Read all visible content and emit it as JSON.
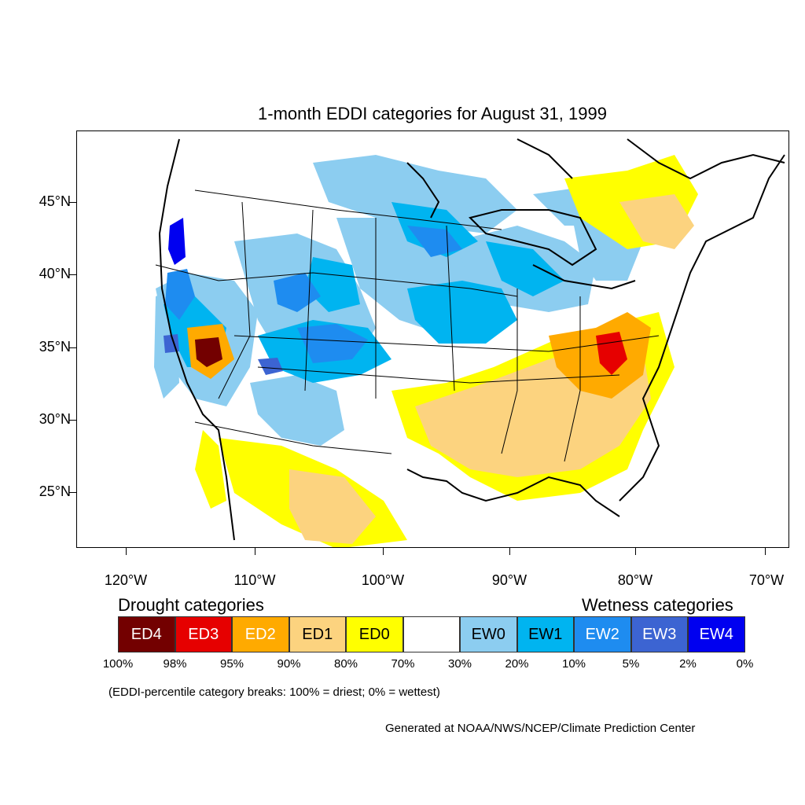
{
  "map": {
    "title": "1-month EDDI categories for August 31, 1999",
    "lat_labels": [
      "45°N",
      "40°N",
      "35°N",
      "30°N",
      "25°N"
    ],
    "lon_labels": [
      "120°W",
      "110°W",
      "100°W",
      "90°W",
      "80°W",
      "70°W"
    ]
  },
  "legend": {
    "drought_heading": "Drought categories",
    "wetness_heading": "Wetness categories",
    "categories": [
      {
        "label": "ED4",
        "color": "#730000",
        "text_color": "#ffffff"
      },
      {
        "label": "ED3",
        "color": "#e60000",
        "text_color": "#ffffff"
      },
      {
        "label": "ED2",
        "color": "#ffaa00",
        "text_color": "#ffffff"
      },
      {
        "label": "ED1",
        "color": "#fcd37f",
        "text_color": "#000000"
      },
      {
        "label": "ED0",
        "color": "#ffff00",
        "text_color": "#000000"
      },
      {
        "label": "",
        "color": "#ffffff",
        "text_color": "#000000"
      },
      {
        "label": "EW0",
        "color": "#8ccdf0",
        "text_color": "#000000"
      },
      {
        "label": "EW1",
        "color": "#00b4f0",
        "text_color": "#000000"
      },
      {
        "label": "EW2",
        "color": "#1e8cf0",
        "text_color": "#ffffff"
      },
      {
        "label": "EW3",
        "color": "#3c64d2",
        "text_color": "#ffffff"
      },
      {
        "label": "EW4",
        "color": "#0000f0",
        "text_color": "#ffffff"
      }
    ],
    "breaks": [
      "100%",
      "98%",
      "95%",
      "90%",
      "80%",
      "70%",
      "30%",
      "20%",
      "10%",
      "5%",
      "2%",
      "0%"
    ]
  },
  "footnote": "(EDDI-percentile category breaks: 100% = driest; 0% = wettest)",
  "credit": "Generated at NOAA/NWS/NCEP/Climate Prediction Center"
}
